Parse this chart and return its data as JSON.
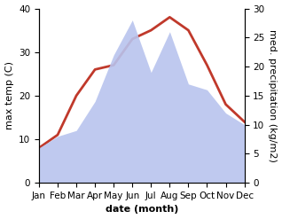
{
  "months": [
    "Jan",
    "Feb",
    "Mar",
    "Apr",
    "May",
    "Jun",
    "Jul",
    "Aug",
    "Sep",
    "Oct",
    "Nov",
    "Dec"
  ],
  "temperature": [
    8,
    11,
    20,
    26,
    27,
    33,
    35,
    38,
    35,
    27,
    18,
    14
  ],
  "precipitation": [
    6,
    8,
    9,
    14,
    22,
    28,
    19,
    26,
    17,
    16,
    12,
    10
  ],
  "temp_color": "#c0392b",
  "precip_color_fill": "#b8c4ee",
  "temp_ylim": [
    0,
    40
  ],
  "precip_ylim": [
    0,
    30
  ],
  "temp_yticks": [
    0,
    10,
    20,
    30,
    40
  ],
  "precip_yticks": [
    0,
    5,
    10,
    15,
    20,
    25,
    30
  ],
  "xlabel": "date (month)",
  "ylabel_left": "max temp (C)",
  "ylabel_right": "med. precipitation (kg/m2)",
  "figsize": [
    3.18,
    2.47
  ],
  "dpi": 100,
  "axis_label_fontsize": 8,
  "tick_fontsize": 7.5
}
